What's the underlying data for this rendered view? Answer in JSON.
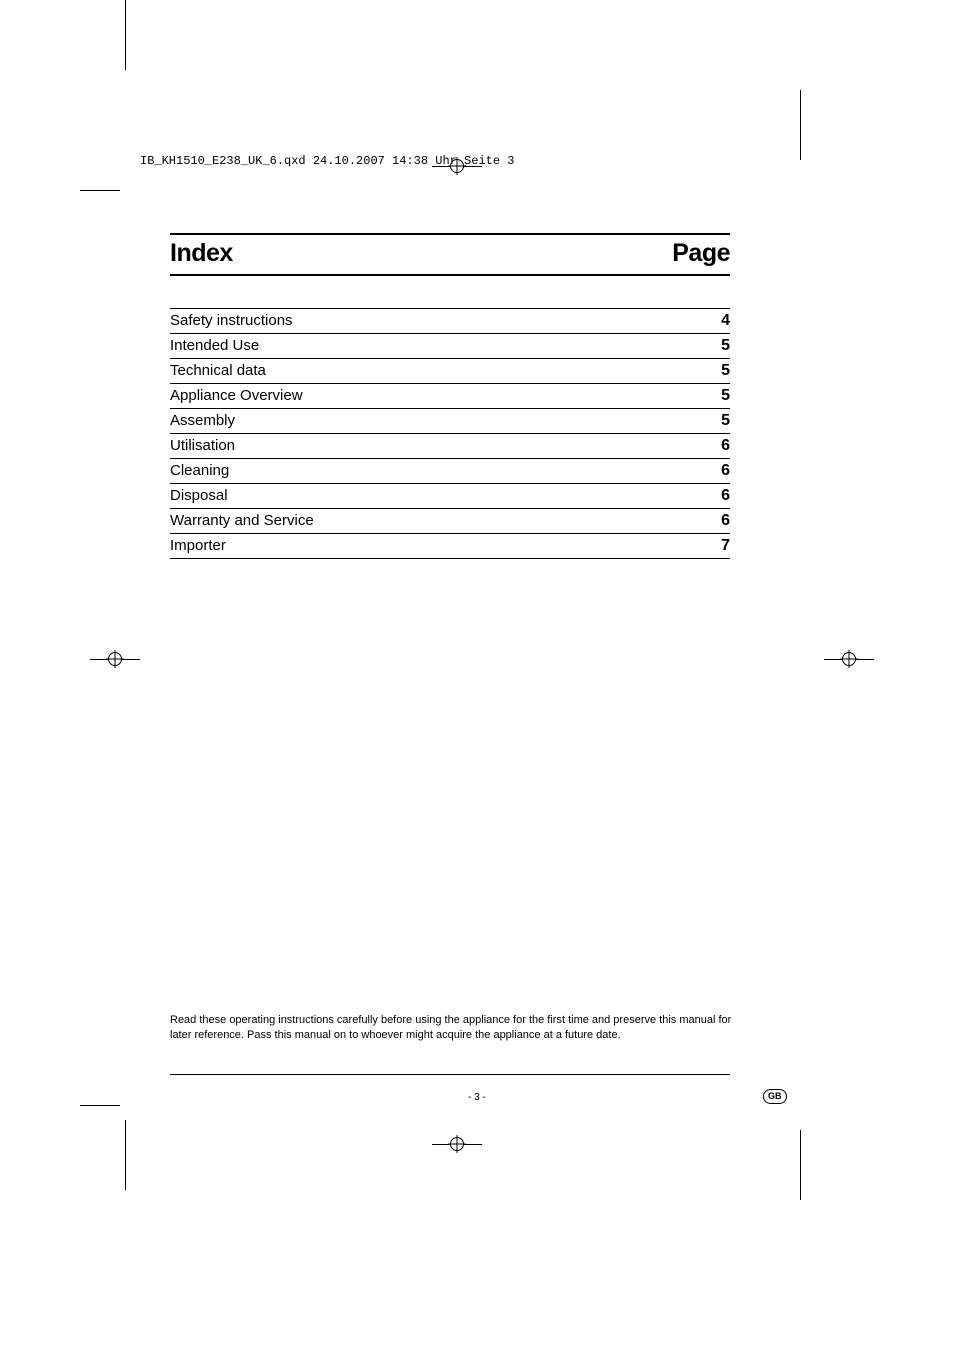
{
  "header_slug": "IB_KH1510_E238_UK_6.qxd  24.10.2007  14:38 Uhr  Seite 3",
  "title": {
    "left": "Index",
    "right": "Page"
  },
  "toc": [
    {
      "label": "Safety instructions",
      "page": "4"
    },
    {
      "label": "Intended Use",
      "page": "5"
    },
    {
      "label": "Technical data",
      "page": "5"
    },
    {
      "label": "Appliance Overview",
      "page": "5"
    },
    {
      "label": "Assembly",
      "page": "5"
    },
    {
      "label": "Utilisation",
      "page": "6"
    },
    {
      "label": "Cleaning",
      "page": "6"
    },
    {
      "label": "Disposal",
      "page": "6"
    },
    {
      "label": "Warranty and Service",
      "page": "6"
    },
    {
      "label": "Importer",
      "page": "7"
    }
  ],
  "footnote": "Read these operating instructions carefully before using the appliance for the first time and preserve this manual for later reference. Pass this manual on to whoever might acquire the appliance at a future date.",
  "page_number": "- 3 -",
  "lang_badge": "GB",
  "colors": {
    "text": "#000000",
    "background": "#ffffff"
  },
  "typography": {
    "title_fontsize": 25,
    "title_weight": 900,
    "toc_label_fontsize": 15,
    "toc_page_fontsize": 16,
    "footnote_fontsize": 11,
    "header_slug_fontsize": 12,
    "page_number_fontsize": 10
  }
}
